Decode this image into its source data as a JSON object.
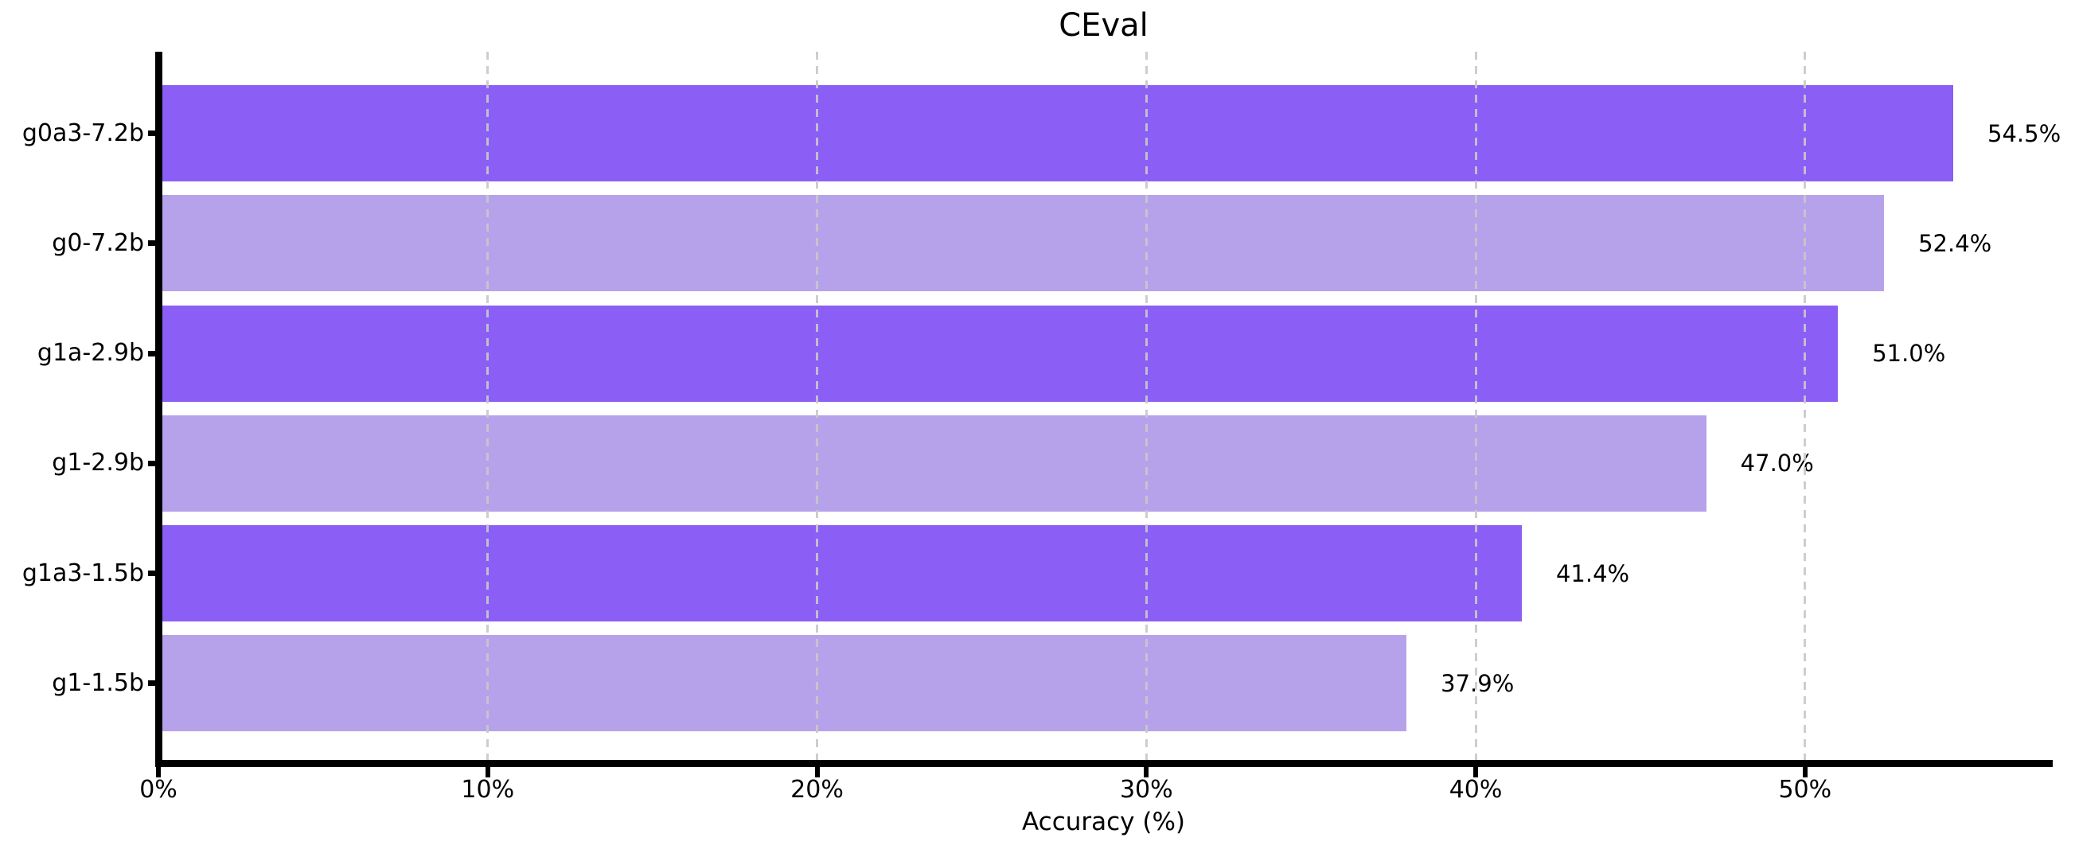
{
  "chart_data": {
    "type": "bar",
    "orientation": "horizontal",
    "title": "CEval",
    "xlabel": "Accuracy (%)",
    "categories": [
      "g0a3-7.2b",
      "g0-7.2b",
      "g1a-2.9b",
      "g1-2.9b",
      "g1a3-1.5b",
      "g1-1.5b"
    ],
    "values": [
      54.5,
      52.4,
      51.0,
      47.0,
      41.4,
      37.9
    ],
    "value_labels": [
      "54.5%",
      "52.4%",
      "51.0%",
      "47.0%",
      "41.4%",
      "37.9%"
    ],
    "xlim": [
      0,
      57.4
    ],
    "xticks": [
      0,
      10,
      20,
      30,
      40,
      50
    ],
    "xtick_labels": [
      "0%",
      "10%",
      "20%",
      "30%",
      "40%",
      "50%"
    ],
    "grid": "vertical-dashed-on-top-of-bars",
    "legend": "none",
    "colors": {
      "bar_dark": "#8B5EF5",
      "bar_light": "#B6A2EB",
      "grid": "#c8c8c8",
      "axis": "#000000",
      "background": "#ffffff"
    },
    "bar_color_pattern": [
      "dark",
      "light",
      "dark",
      "light",
      "dark",
      "light"
    ]
  }
}
